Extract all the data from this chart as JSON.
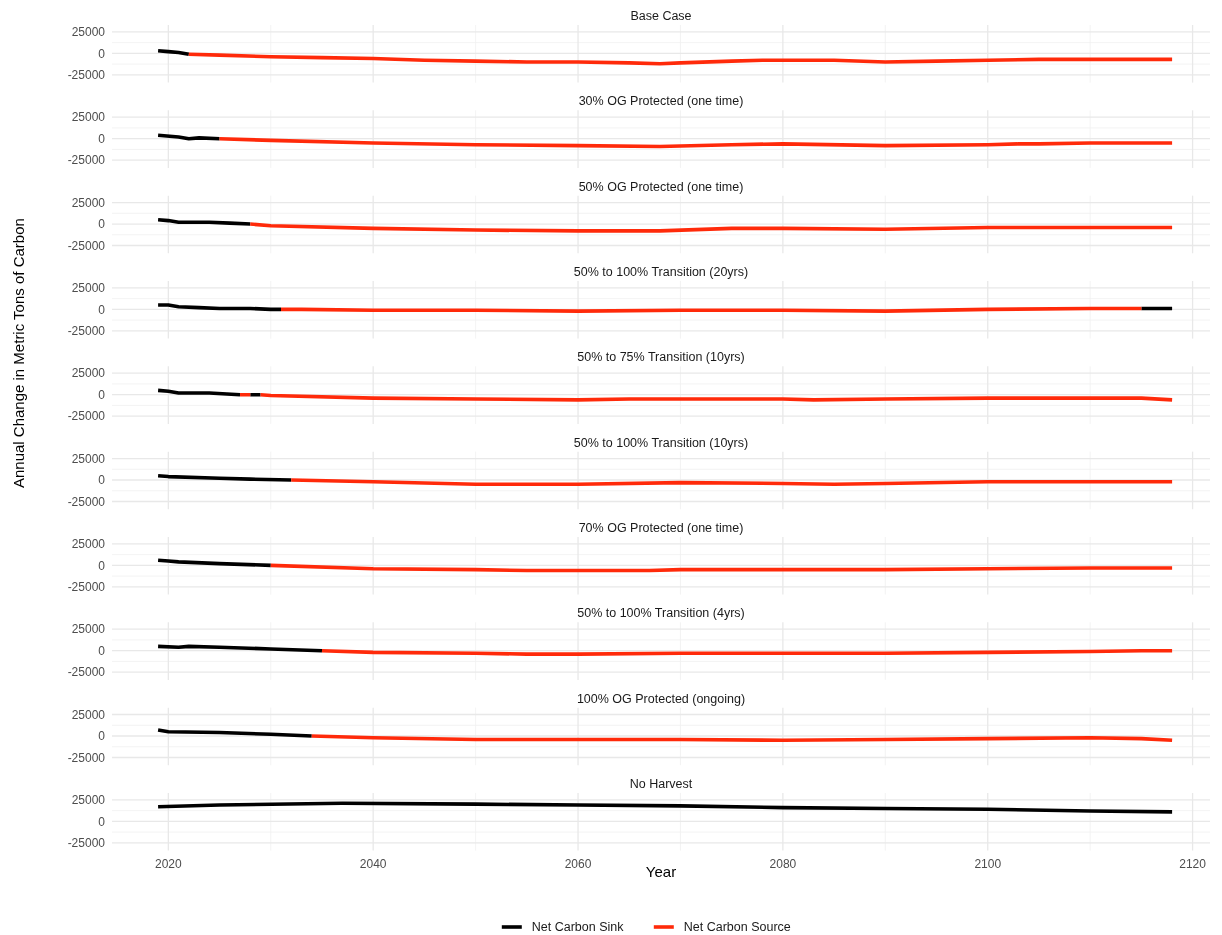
{
  "chart_data": [
    {
      "type": "line",
      "title": "Base Case",
      "xlim": [
        2014.5,
        2121.7
      ],
      "ylim": [
        -34000,
        33000
      ],
      "yticks": [
        -25000,
        0,
        25000
      ],
      "xticks": [
        2020,
        2040,
        2060,
        2080,
        2100,
        2120
      ],
      "tick_labels": "y",
      "grid": true,
      "legend": false,
      "series": [
        {
          "color": "#000000",
          "x": [
            2019,
            2020,
            2021,
            2022
          ],
          "values": [
            3000,
            2000,
            1000,
            -1000
          ]
        },
        {
          "color": "#ff2a0a",
          "x": [
            2022,
            2025,
            2030,
            2035,
            2040,
            2045,
            2050,
            2055,
            2060,
            2065,
            2068,
            2070,
            2075,
            2078,
            2085,
            2090,
            2095,
            2100,
            2105,
            2110,
            2118
          ],
          "values": [
            -1000,
            -2000,
            -4000,
            -5000,
            -6000,
            -8000,
            -9000,
            -10000,
            -10000,
            -11000,
            -12000,
            -11000,
            -9000,
            -8000,
            -8000,
            -10000,
            -9000,
            -8000,
            -7000,
            -7000,
            -7000
          ]
        }
      ]
    },
    {
      "type": "line",
      "title": "30% OG Protected (one time)",
      "xlim": [
        2014.5,
        2121.7
      ],
      "ylim": [
        -34000,
        33000
      ],
      "yticks": [
        -25000,
        0,
        25000
      ],
      "xticks": [
        2020,
        2040,
        2060,
        2080,
        2100,
        2120
      ],
      "tick_labels": "y",
      "grid": true,
      "legend": false,
      "series": [
        {
          "color": "#000000",
          "x": [
            2019,
            2021,
            2022,
            2023,
            2025
          ],
          "values": [
            4000,
            2000,
            0,
            1000,
            0
          ]
        },
        {
          "color": "#ff2a0a",
          "x": [
            2025,
            2030,
            2040,
            2050,
            2060,
            2068,
            2075,
            2080,
            2090,
            2100,
            2103,
            2105,
            2110,
            2118
          ],
          "values": [
            0,
            -2000,
            -5000,
            -7000,
            -8000,
            -9000,
            -7000,
            -6000,
            -8000,
            -7000,
            -6000,
            -6000,
            -5000,
            -5000
          ]
        }
      ]
    },
    {
      "type": "line",
      "title": "50% OG Protected (one time)",
      "xlim": [
        2014.5,
        2121.7
      ],
      "ylim": [
        -34000,
        33000
      ],
      "yticks": [
        -25000,
        0,
        25000
      ],
      "xticks": [
        2020,
        2040,
        2060,
        2080,
        2100,
        2120
      ],
      "tick_labels": "y",
      "grid": true,
      "legend": false,
      "series": [
        {
          "color": "#000000",
          "x": [
            2019,
            2020,
            2021,
            2024,
            2026,
            2028
          ],
          "values": [
            5000,
            4000,
            2000,
            2000,
            1000,
            0
          ]
        },
        {
          "color": "#ff2a0a",
          "x": [
            2028,
            2030,
            2040,
            2050,
            2060,
            2068,
            2075,
            2080,
            2090,
            2100,
            2110,
            2118
          ],
          "values": [
            0,
            -2000,
            -5000,
            -7000,
            -8000,
            -8000,
            -5000,
            -5000,
            -6000,
            -4000,
            -4000,
            -4000
          ]
        }
      ]
    },
    {
      "type": "line",
      "title": "50% to 100% Transition (20yrs)",
      "xlim": [
        2014.5,
        2121.7
      ],
      "ylim": [
        -34000,
        33000
      ],
      "yticks": [
        -25000,
        0,
        25000
      ],
      "xticks": [
        2020,
        2040,
        2060,
        2080,
        2100,
        2120
      ],
      "tick_labels": "y",
      "grid": true,
      "legend": false,
      "series": [
        {
          "color": "#000000",
          "x": [
            2019,
            2020,
            2021,
            2023,
            2025,
            2028,
            2030,
            2031,
            2073,
            2115,
            2118
          ],
          "values": [
            5000,
            5000,
            3000,
            2000,
            1000,
            1000,
            0,
            0,
            null,
            1000,
            1000
          ]
        },
        {
          "color": "#ff2a0a",
          "x": [
            2031,
            2033,
            2040,
            2050,
            2060,
            2070,
            2080,
            2090,
            2100,
            2110,
            2115
          ],
          "values": [
            0,
            0,
            -1000,
            -1000,
            -2000,
            -1000,
            -1000,
            -2000,
            0,
            1000,
            1000
          ]
        }
      ]
    },
    {
      "type": "line",
      "title": "50% to 75% Transition (10yrs)",
      "ylabel": "Annual Change in Metric Tons of Carbon",
      "xlim": [
        2014.5,
        2121.7
      ],
      "ylim": [
        -34000,
        33000
      ],
      "yticks": [
        -25000,
        0,
        25000
      ],
      "xticks": [
        2020,
        2040,
        2060,
        2080,
        2100,
        2120
      ],
      "tick_labels": "y",
      "grid": true,
      "legend": false,
      "series": [
        {
          "color": "#000000",
          "x": [
            2019,
            2020,
            2021,
            2024,
            2027,
            2027.5,
            2028,
            2029
          ],
          "values": [
            5000,
            4000,
            2000,
            2000,
            0,
            null,
            0,
            0
          ]
        },
        {
          "color": "#ff2a0a",
          "x": [
            2027,
            2028,
            2028.5,
            2029,
            2030,
            2040,
            2050,
            2060,
            2065,
            2070,
            2080,
            2083,
            2090,
            2100,
            2110,
            2115,
            2118
          ],
          "values": [
            0,
            0,
            null,
            0,
            -1000,
            -4000,
            -5000,
            -6000,
            -5000,
            -5000,
            -5000,
            -6000,
            -5000,
            -4000,
            -4000,
            -4000,
            -6000
          ]
        }
      ]
    },
    {
      "type": "line",
      "title": "50% to 100% Transition (10yrs)",
      "xlim": [
        2014.5,
        2121.7
      ],
      "ylim": [
        -34000,
        33000
      ],
      "yticks": [
        -25000,
        0,
        25000
      ],
      "xticks": [
        2020,
        2040,
        2060,
        2080,
        2100,
        2120
      ],
      "tick_labels": "y",
      "grid": true,
      "legend": false,
      "series": [
        {
          "color": "#000000",
          "x": [
            2019,
            2020,
            2025,
            2028,
            2032
          ],
          "values": [
            5000,
            4000,
            2000,
            1000,
            0
          ]
        },
        {
          "color": "#ff2a0a",
          "x": [
            2032,
            2040,
            2050,
            2060,
            2070,
            2080,
            2085,
            2090,
            2100,
            2118
          ],
          "values": [
            0,
            -2000,
            -5000,
            -5000,
            -3000,
            -4000,
            -5000,
            -4000,
            -2000,
            -2000
          ]
        }
      ]
    },
    {
      "type": "line",
      "title": "70% OG Protected (one time)",
      "xlim": [
        2014.5,
        2121.7
      ],
      "ylim": [
        -34000,
        33000
      ],
      "yticks": [
        -25000,
        0,
        25000
      ],
      "xticks": [
        2020,
        2040,
        2060,
        2080,
        2100,
        2120
      ],
      "tick_labels": "y",
      "grid": true,
      "legend": false,
      "series": [
        {
          "color": "#000000",
          "x": [
            2019,
            2020,
            2021,
            2025,
            2030
          ],
          "values": [
            6000,
            5000,
            4000,
            2000,
            0
          ]
        },
        {
          "color": "#ff2a0a",
          "x": [
            2030,
            2040,
            2050,
            2055,
            2060,
            2067,
            2070,
            2080,
            2090,
            2100,
            2110,
            2118
          ],
          "values": [
            0,
            -4000,
            -5000,
            -6000,
            -6000,
            -6000,
            -5000,
            -5000,
            -5000,
            -4000,
            -3000,
            -3000
          ]
        }
      ]
    },
    {
      "type": "line",
      "title": "50% to 100% Transition (4yrs)",
      "xlim": [
        2014.5,
        2121.7
      ],
      "ylim": [
        -34000,
        33000
      ],
      "yticks": [
        -25000,
        0,
        25000
      ],
      "xticks": [
        2020,
        2040,
        2060,
        2080,
        2100,
        2120
      ],
      "tick_labels": "y",
      "grid": true,
      "legend": false,
      "series": [
        {
          "color": "#000000",
          "x": [
            2019,
            2021,
            2022,
            2025,
            2030,
            2035
          ],
          "values": [
            5000,
            4000,
            5000,
            4000,
            2000,
            0
          ]
        },
        {
          "color": "#ff2a0a",
          "x": [
            2035,
            2040,
            2050,
            2055,
            2060,
            2070,
            2080,
            2090,
            2100,
            2110,
            2115,
            2118
          ],
          "values": [
            0,
            -2000,
            -3000,
            -4000,
            -4000,
            -3000,
            -3000,
            -3000,
            -2000,
            -1000,
            0,
            0
          ]
        }
      ]
    },
    {
      "type": "line",
      "title": "100% OG Protected (ongoing)",
      "xlim": [
        2014.5,
        2121.7
      ],
      "ylim": [
        -34000,
        33000
      ],
      "yticks": [
        -25000,
        0,
        25000
      ],
      "xticks": [
        2020,
        2040,
        2060,
        2080,
        2100,
        2120
      ],
      "tick_labels": "y",
      "grid": true,
      "legend": false,
      "series": [
        {
          "color": "#000000",
          "x": [
            2019,
            2020,
            2025,
            2030,
            2034
          ],
          "values": [
            7000,
            5000,
            4000,
            2000,
            0
          ]
        },
        {
          "color": "#ff2a0a",
          "x": [
            2034,
            2040,
            2050,
            2060,
            2070,
            2080,
            2090,
            2100,
            2110,
            2115,
            2118
          ],
          "values": [
            0,
            -2000,
            -4000,
            -4000,
            -4000,
            -5000,
            -4000,
            -3000,
            -2000,
            -3000,
            -5000
          ]
        }
      ]
    },
    {
      "type": "line",
      "title": "No Harvest",
      "xlabel": "Year",
      "xlim": [
        2014.5,
        2121.7
      ],
      "ylim": [
        -34000,
        33000
      ],
      "yticks": [
        -25000,
        0,
        25000
      ],
      "xticks": [
        2020,
        2040,
        2060,
        2080,
        2100,
        2120
      ],
      "grid": true,
      "legend": "bottom",
      "series": [
        {
          "name": "Net Carbon Sink",
          "color": "#000000",
          "x": [
            2019,
            2025,
            2037,
            2050,
            2060,
            2070,
            2080,
            2090,
            2100,
            2110,
            2118
          ],
          "values": [
            17000,
            19000,
            21000,
            20000,
            19000,
            18000,
            16000,
            15000,
            14000,
            12000,
            11000
          ]
        },
        {
          "name": "Net Carbon Source",
          "color": "#ff2a0a"
        }
      ]
    }
  ]
}
